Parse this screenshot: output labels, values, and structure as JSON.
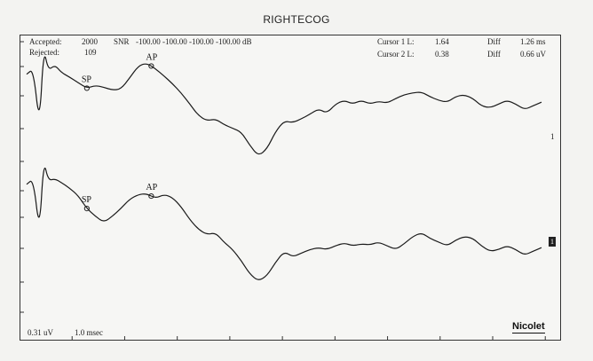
{
  "title": "RIGHTECOG",
  "header": {
    "accepted_label": "Accepted:",
    "accepted_value": "2000",
    "rejected_label": "Rejected:",
    "rejected_value": "109",
    "snr_label": "SNR",
    "snr_values": "-100.00 -100.00 -100.00 -100.00 dB",
    "cursor1_label": "Cursor 1 L:",
    "cursor1_value": "1.64",
    "cursor2_label": "Cursor 2 L:",
    "cursor2_value": "0.38",
    "diff1_label": "Diff",
    "diff1_value": "1.26 ms",
    "diff2_label": "Diff",
    "diff2_value": "0.66 uV"
  },
  "footer": {
    "amplitude_scale": "0.31 uV",
    "time_scale": "1.0 msec",
    "brand": "Nicolet"
  },
  "channel_labels": {
    "ch1": "1",
    "ch2": "1"
  },
  "chart_data": {
    "type": "line",
    "title": "RIGHTECOG",
    "xlabel": "",
    "ylabel": "",
    "grid": false,
    "x_unit": "msec",
    "x_division": "1.0 msec",
    "y_division": "0.31 uV",
    "series": [
      {
        "name": "1",
        "x": [
          0.0,
          0.13,
          0.25,
          0.33,
          0.42,
          0.55,
          0.67,
          0.83,
          1.0,
          1.17,
          1.33,
          1.5,
          1.67,
          1.83,
          2.0,
          2.17,
          2.33,
          2.5,
          2.67,
          2.83,
          3.0,
          3.17,
          3.33,
          3.5,
          3.67,
          3.83,
          4.0,
          4.17,
          4.33,
          4.5,
          4.67,
          4.83,
          5.0,
          5.17,
          5.33,
          5.5,
          5.67,
          5.83,
          6.0,
          6.17,
          6.33,
          6.5,
          6.67,
          6.83,
          7.0,
          7.17,
          7.33,
          7.5,
          7.67,
          7.83,
          8.0,
          8.17,
          8.33,
          8.5,
          8.67,
          8.83,
          9.0,
          9.17,
          9.33,
          9.5,
          9.67,
          9.83,
          10.0
        ],
        "y": [
          0.3,
          0.6,
          -2.5,
          1.7,
          0.5,
          0.8,
          0.4,
          0.15,
          -0.15,
          -0.45,
          -0.3,
          -0.4,
          -0.55,
          -0.5,
          0.1,
          0.75,
          0.9,
          0.6,
          0.2,
          -0.2,
          -0.7,
          -1.3,
          -1.9,
          -2.2,
          -2.1,
          -2.4,
          -2.6,
          -2.8,
          -3.5,
          -4.1,
          -3.7,
          -2.8,
          -2.2,
          -2.3,
          -2.1,
          -1.85,
          -1.55,
          -1.8,
          -1.3,
          -1.1,
          -1.3,
          -1.1,
          -1.3,
          -1.15,
          -1.25,
          -1.0,
          -0.8,
          -0.7,
          -0.65,
          -0.9,
          -1.1,
          -1.2,
          -0.9,
          -0.8,
          -1.0,
          -1.4,
          -1.5,
          -1.3,
          -1.1,
          -1.3,
          -1.6,
          -1.4,
          -1.2
        ]
      },
      {
        "name": "2",
        "x": [
          0.0,
          0.13,
          0.25,
          0.33,
          0.42,
          0.55,
          0.67,
          0.83,
          1.0,
          1.17,
          1.33,
          1.5,
          1.67,
          1.83,
          2.0,
          2.17,
          2.33,
          2.5,
          2.67,
          2.83,
          3.0,
          3.17,
          3.33,
          3.5,
          3.67,
          3.83,
          4.0,
          4.17,
          4.33,
          4.5,
          4.67,
          4.83,
          5.0,
          5.17,
          5.33,
          5.5,
          5.67,
          5.83,
          6.0,
          6.17,
          6.33,
          6.5,
          6.67,
          6.83,
          7.0,
          7.17,
          7.33,
          7.5,
          7.67,
          7.83,
          8.0,
          8.17,
          8.33,
          8.5,
          8.67,
          8.83,
          9.0,
          9.17,
          9.33,
          9.5,
          9.67,
          9.83,
          10.0
        ],
        "y": [
          0.2,
          0.5,
          -2.4,
          1.5,
          0.4,
          0.5,
          0.3,
          0.0,
          -0.4,
          -1.1,
          -1.5,
          -1.85,
          -1.5,
          -1.1,
          -0.6,
          -0.35,
          -0.3,
          -0.55,
          -0.35,
          -0.5,
          -1.0,
          -1.7,
          -2.2,
          -2.5,
          -2.4,
          -2.9,
          -3.3,
          -3.9,
          -4.6,
          -5.0,
          -4.7,
          -4.0,
          -3.4,
          -3.7,
          -3.5,
          -3.3,
          -3.2,
          -3.3,
          -3.1,
          -2.95,
          -3.1,
          -3.0,
          -3.05,
          -2.9,
          -3.1,
          -3.3,
          -3.0,
          -2.6,
          -2.4,
          -2.7,
          -2.9,
          -3.1,
          -2.8,
          -2.6,
          -2.7,
          -3.1,
          -3.4,
          -3.3,
          -3.1,
          -3.3,
          -3.6,
          -3.4,
          -3.2
        ]
      }
    ],
    "cursors": [
      {
        "label": "SP",
        "series": "1",
        "x": 1.17
      },
      {
        "label": "AP",
        "series": "1",
        "x": 2.42
      },
      {
        "label": "SP",
        "series": "2",
        "x": 1.17
      },
      {
        "label": "AP",
        "series": "2",
        "x": 2.42
      }
    ]
  }
}
